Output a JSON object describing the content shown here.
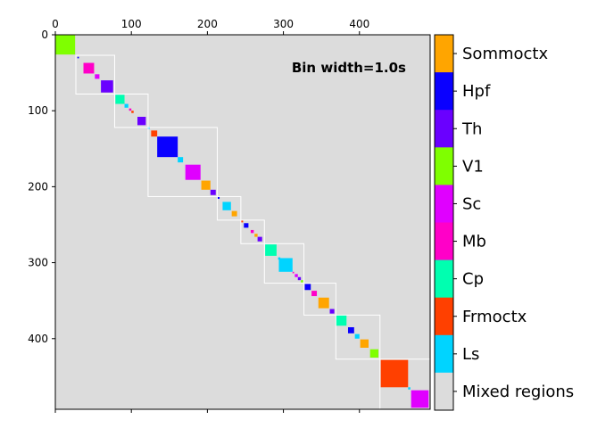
{
  "chart_data": {
    "type": "heatmap",
    "annotation": "Bin width=1.0s",
    "x_ticks": [
      0,
      100,
      200,
      300,
      400
    ],
    "y_ticks": [
      0,
      100,
      200,
      300,
      400
    ],
    "xlim": [
      0,
      493
    ],
    "ylim": [
      493,
      0
    ],
    "background_color": "#dcdcdc",
    "categories": [
      {
        "label": "Sommoctx",
        "color": "#ffa500"
      },
      {
        "label": "Hpf",
        "color": "#0a00ff"
      },
      {
        "label": "Th",
        "color": "#6a00ff"
      },
      {
        "label": "V1",
        "color": "#7fff00"
      },
      {
        "label": "Sc",
        "color": "#e000ff"
      },
      {
        "label": "Mb",
        "color": "#ff00c8"
      },
      {
        "label": "Cp",
        "color": "#00ffb0"
      },
      {
        "label": "Frmoctx",
        "color": "#ff4000"
      },
      {
        "label": "Ls",
        "color": "#00d4ff"
      },
      {
        "label": "Mixed regions",
        "color": "#dcdcdc"
      }
    ],
    "cluster_blocks": [
      {
        "start": 0,
        "size": 26,
        "region": "V1"
      },
      {
        "start": 29,
        "size": 2,
        "region": "Hpf"
      },
      {
        "start": 37,
        "size": 14,
        "region": "Mb"
      },
      {
        "start": 52,
        "size": 6,
        "region": "Sc"
      },
      {
        "start": 60,
        "size": 16,
        "region": "Th"
      },
      {
        "start": 79,
        "size": 12,
        "region": "Cp"
      },
      {
        "start": 91,
        "size": 5,
        "region": "Ls"
      },
      {
        "start": 97,
        "size": 3,
        "region": "Mb"
      },
      {
        "start": 100,
        "size": 3,
        "region": "Frmoctx"
      },
      {
        "start": 108,
        "size": 11,
        "region": "Th"
      },
      {
        "start": 121,
        "size": 3,
        "region": "Ls"
      },
      {
        "start": 126,
        "size": 8,
        "region": "Frmoctx"
      },
      {
        "start": 134,
        "size": 27,
        "region": "Hpf"
      },
      {
        "start": 161,
        "size": 7,
        "region": "Ls"
      },
      {
        "start": 171,
        "size": 20,
        "region": "Sc"
      },
      {
        "start": 192,
        "size": 12,
        "region": "Sommoctx"
      },
      {
        "start": 204,
        "size": 7,
        "region": "Th"
      },
      {
        "start": 213,
        "size": 3,
        "region": "Hpf"
      },
      {
        "start": 220,
        "size": 11,
        "region": "Ls"
      },
      {
        "start": 232,
        "size": 7,
        "region": "Sommoctx"
      },
      {
        "start": 244,
        "size": 3,
        "region": "Frmoctx"
      },
      {
        "start": 248,
        "size": 6,
        "region": "Hpf"
      },
      {
        "start": 257,
        "size": 4,
        "region": "Mb"
      },
      {
        "start": 262,
        "size": 4,
        "region": "Sommoctx"
      },
      {
        "start": 266,
        "size": 6,
        "region": "Th"
      },
      {
        "start": 276,
        "size": 15,
        "region": "Cp"
      },
      {
        "start": 293,
        "size": 3,
        "region": "Ls"
      },
      {
        "start": 294,
        "size": 18,
        "region": "Ls"
      },
      {
        "start": 312,
        "size": 2,
        "region": "Mb"
      },
      {
        "start": 315,
        "size": 4,
        "region": "Sc"
      },
      {
        "start": 319,
        "size": 4,
        "region": "Th"
      },
      {
        "start": 323,
        "size": 3,
        "region": "V1"
      },
      {
        "start": 328,
        "size": 8,
        "region": "Hpf"
      },
      {
        "start": 337,
        "size": 7,
        "region": "Mb"
      },
      {
        "start": 346,
        "size": 14,
        "region": "Sommoctx"
      },
      {
        "start": 361,
        "size": 6,
        "region": "Th"
      },
      {
        "start": 369,
        "size": 14,
        "region": "Cp"
      },
      {
        "start": 385,
        "size": 8,
        "region": "Hpf"
      },
      {
        "start": 394,
        "size": 6,
        "region": "Ls"
      },
      {
        "start": 401,
        "size": 11,
        "region": "Sommoctx"
      },
      {
        "start": 414,
        "size": 11,
        "region": "V1"
      },
      {
        "start": 428,
        "size": 36,
        "region": "Frmoctx"
      },
      {
        "start": 464,
        "size": 3,
        "region": "Ls"
      },
      {
        "start": 468,
        "size": 23,
        "region": "Sc"
      }
    ],
    "group_boxes": [
      {
        "start": 27,
        "end": 78
      },
      {
        "start": 78,
        "end": 122
      },
      {
        "start": 122,
        "end": 213
      },
      {
        "start": 213,
        "end": 244
      },
      {
        "start": 244,
        "end": 275
      },
      {
        "start": 275,
        "end": 327
      },
      {
        "start": 327,
        "end": 369
      },
      {
        "start": 369,
        "end": 427
      },
      {
        "start": 427,
        "end": 493
      }
    ]
  }
}
